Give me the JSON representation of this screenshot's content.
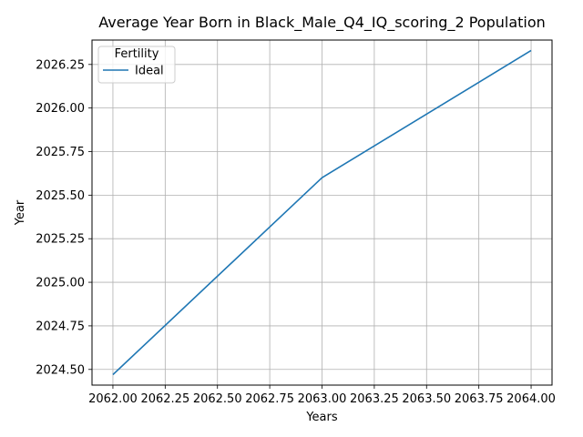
{
  "chart_data": {
    "type": "line",
    "title": "Average Year Born in Black_Male_Q4_IQ_scoring_2 Population",
    "xlabel": "Years",
    "ylabel": "Year",
    "xlim": [
      1.9,
      4.1
    ],
    "ylim": [
      2024.41,
      2026.39
    ],
    "x_ticks": [
      2.0,
      2.25,
      2.5,
      2.75,
      3.0,
      3.25,
      3.5,
      3.75,
      4.0
    ],
    "x_tick_labels": [
      "2062.00",
      "2062.25",
      "2062.50",
      "2062.75",
      "2063.00",
      "2063.25",
      "2063.50",
      "2063.75",
      "2064.00"
    ],
    "y_ticks": [
      2024.5,
      2024.75,
      2025.0,
      2025.25,
      2025.5,
      2025.75,
      2026.0,
      2026.25
    ],
    "y_tick_labels": [
      "2024.50",
      "2024.75",
      "2025.00",
      "2025.25",
      "2025.50",
      "2025.75",
      "2026.00",
      "2026.25"
    ],
    "grid": true,
    "legend": {
      "title": "Fertility",
      "placement": "top-left"
    },
    "series": [
      {
        "name": "Ideal",
        "color": "#1f77b4",
        "x": [
          2.0,
          3.0,
          4.0
        ],
        "y": [
          2024.47,
          2025.6,
          2026.33
        ]
      }
    ]
  }
}
